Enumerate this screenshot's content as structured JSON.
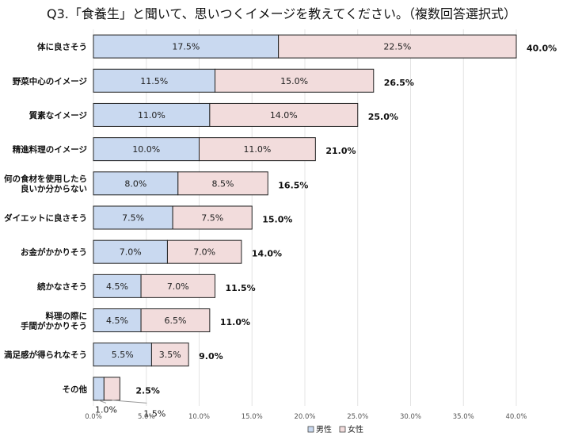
{
  "chart_data": {
    "type": "bar",
    "orientation": "horizontal",
    "stacked": true,
    "title": "Q3.「食養生」と聞いて、思いつくイメージを教えてください。（複数回答選択式）",
    "categories": [
      [
        "体に良さそう"
      ],
      [
        "野菜中心のイメージ"
      ],
      [
        "質素なイメージ"
      ],
      [
        "精進料理のイメージ"
      ],
      [
        "何の食材を使用したら",
        "良いか分からない"
      ],
      [
        "ダイエットに良さそう"
      ],
      [
        "お金がかかりそう"
      ],
      [
        "続かなさそう"
      ],
      [
        "料理の際に",
        "手間がかかりそう"
      ],
      [
        "満足感が得られなそう"
      ],
      [
        "その他"
      ]
    ],
    "series": [
      {
        "name": "男性",
        "color": "#c9d9f0",
        "values": [
          17.5,
          11.5,
          11.0,
          10.0,
          8.0,
          7.5,
          7.0,
          4.5,
          4.5,
          5.5,
          1.0
        ],
        "labels": [
          "17.5%",
          "11.5%",
          "11.0%",
          "10.0%",
          "8.0%",
          "7.5%",
          "7.0%",
          "4.5%",
          "4.5%",
          "5.5%",
          "1.0%"
        ]
      },
      {
        "name": "女性",
        "color": "#f2dcdc",
        "values": [
          22.5,
          15.0,
          14.0,
          11.0,
          8.5,
          7.5,
          7.0,
          7.0,
          6.5,
          3.5,
          1.5
        ],
        "labels": [
          "22.5%",
          "15.0%",
          "14.0%",
          "11.0%",
          "8.5%",
          "7.5%",
          "7.0%",
          "7.0%",
          "6.5%",
          "3.5%",
          "1.5%"
        ]
      }
    ],
    "totals": [
      40.0,
      26.5,
      25.0,
      21.0,
      16.5,
      15.0,
      14.0,
      11.5,
      11.0,
      9.0,
      2.5
    ],
    "total_labels": [
      "40.0%",
      "26.5%",
      "25.0%",
      "21.0%",
      "16.5%",
      "15.0%",
      "14.0%",
      "11.5%",
      "11.0%",
      "9.0%",
      "2.5%"
    ],
    "xlim": [
      0,
      40
    ],
    "xticks": [
      "0.0%",
      "5.0%",
      "10.0%",
      "15.0%",
      "20.0%",
      "25.0%",
      "30.0%",
      "35.0%",
      "40.0%"
    ],
    "grid": true,
    "legend_position": "bottom-right",
    "bar_edge_color": "#222222",
    "grid_color": "#e4e4e4"
  }
}
